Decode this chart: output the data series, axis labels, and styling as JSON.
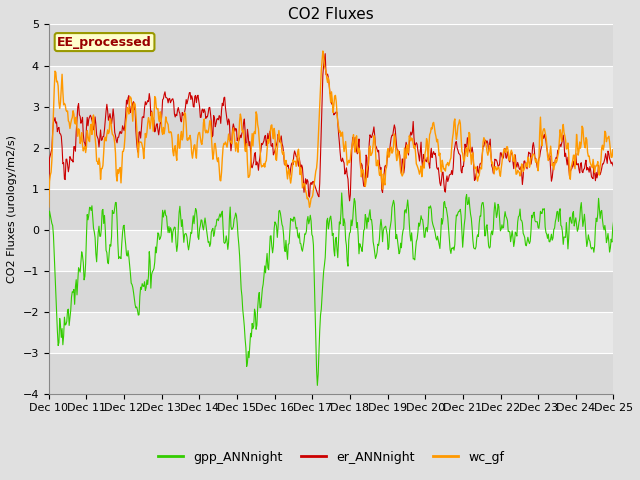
{
  "title": "CO2 Fluxes",
  "ylabel": "CO2 Fluxes (urology/m2/s)",
  "ylim": [
    -4.0,
    5.0
  ],
  "yticks": [
    -4.0,
    -3.0,
    -2.0,
    -1.0,
    0.0,
    1.0,
    2.0,
    3.0,
    4.0,
    5.0
  ],
  "n_days": 15,
  "n_per_day": 48,
  "xtick_labels": [
    "Dec 10",
    "Dec 11",
    "Dec 12",
    "Dec 13",
    "Dec 14",
    "Dec 15",
    "Dec 16",
    "Dec 17",
    "Dec 18",
    "Dec 19",
    "Dec 20",
    "Dec 21",
    "Dec 22",
    "Dec 23",
    "Dec 24",
    "Dec 25"
  ],
  "colors": {
    "gpp": "#33cc00",
    "er": "#cc0000",
    "wc": "#ff9900"
  },
  "legend_labels": [
    "gpp_ANNnight",
    "er_ANNnight",
    "wc_gf"
  ],
  "annotation_text": "EE_processed",
  "annotation_box_color": "#ffffcc",
  "annotation_box_edge": "#999900",
  "background_color": "#e0e0e0",
  "band_colors": [
    "#d8d8d8",
    "#e8e8e8"
  ],
  "grid_color": "#ffffff",
  "title_fontsize": 11,
  "axis_fontsize": 8,
  "tick_fontsize": 8,
  "legend_fontsize": 9,
  "linewidth_er": 0.8,
  "linewidth_wc": 1.0,
  "linewidth_gpp": 0.8
}
